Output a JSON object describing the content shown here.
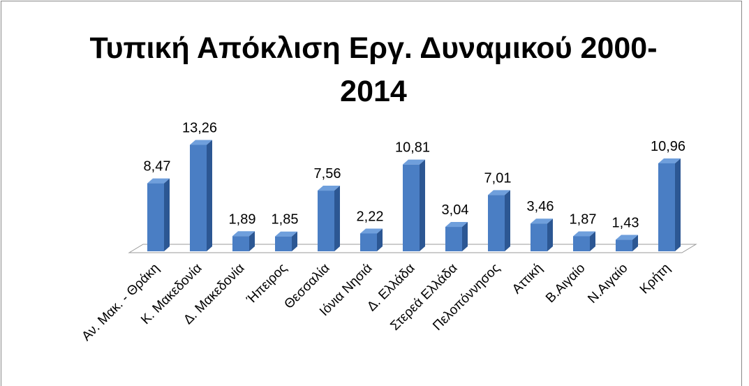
{
  "chart_data": {
    "type": "bar3d",
    "title": "Τυπική Απόκλιση Εργ. Δυναμικού 2000-2014",
    "categories": [
      "Αν. Μακ. - Θράκη",
      "Κ. Μακεδονία",
      "Δ. Μακεδονία",
      "Ήπειρος",
      "Θεσσαλία",
      "Ιόνια Νησιά",
      "Δ. Ελλάδα",
      "Στερεά Ελλάδα",
      "Πελοπόννησος",
      "Αττική",
      "Β.Αιγαίο",
      "Ν.Αιγαίο",
      "Κρήτη"
    ],
    "values": [
      8.47,
      13.26,
      1.89,
      1.85,
      7.56,
      2.22,
      10.81,
      3.04,
      7.01,
      3.46,
      1.87,
      1.43,
      10.96
    ],
    "value_labels": [
      "8,47",
      "13,26",
      "1,89",
      "1,85",
      "7,56",
      "2,22",
      "10,81",
      "3,04",
      "7,01",
      "3,46",
      "1,87",
      "1,43",
      "10,96"
    ],
    "color": "#4a7ec4"
  }
}
